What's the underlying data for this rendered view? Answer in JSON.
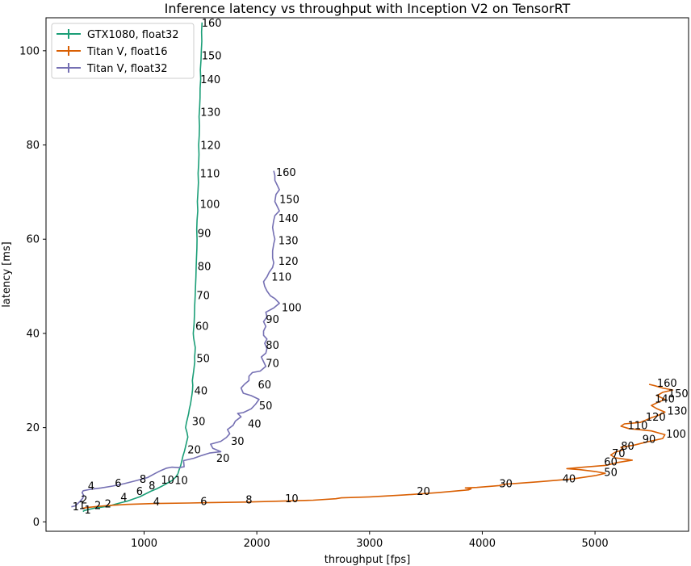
{
  "chart_data": {
    "type": "line",
    "title": "Inference latency vs throughput with Inception V2 on TensorRT",
    "xlabel": "throughput [fps]",
    "ylabel": "latency [ms]",
    "xlim": [
      130,
      5830
    ],
    "ylim": [
      -2,
      107
    ],
    "xticks": [
      1000,
      2000,
      3000,
      4000,
      5000
    ],
    "yticks": [
      0,
      20,
      40,
      60,
      80,
      100
    ],
    "legend_position": "top-left",
    "series": [
      {
        "name": "GTX1080, float32",
        "color": "#1b9e77",
        "points": [
          [
            457,
            2.2
          ],
          [
            470,
            2.4
          ],
          [
            500,
            2.6
          ],
          [
            560,
            2.9
          ],
          [
            620,
            3.1
          ],
          [
            680,
            3.3
          ],
          [
            740,
            3.7
          ],
          [
            800,
            4.1
          ],
          [
            850,
            4.4
          ],
          [
            900,
            4.8
          ],
          [
            960,
            5.3
          ],
          [
            1010,
            5.9
          ],
          [
            1060,
            6.5
          ],
          [
            1110,
            7.0
          ],
          [
            1160,
            7.6
          ],
          [
            1205,
            8.2
          ],
          [
            1250,
            8.8
          ],
          [
            1280,
            9.5
          ],
          [
            1300,
            10.2
          ],
          [
            1310,
            11
          ],
          [
            1325,
            12
          ],
          [
            1335,
            13
          ],
          [
            1345,
            14
          ],
          [
            1358,
            15
          ],
          [
            1368,
            16
          ],
          [
            1378,
            17
          ],
          [
            1388,
            18
          ],
          [
            1380,
            19
          ],
          [
            1368,
            20
          ],
          [
            1375,
            21
          ],
          [
            1385,
            22
          ],
          [
            1395,
            23
          ],
          [
            1402,
            24
          ],
          [
            1412,
            25
          ],
          [
            1418,
            26
          ],
          [
            1425,
            27
          ],
          [
            1430,
            28
          ],
          [
            1432,
            29
          ],
          [
            1428,
            30
          ],
          [
            1434,
            31
          ],
          [
            1440,
            32
          ],
          [
            1445,
            33
          ],
          [
            1450,
            34
          ],
          [
            1448,
            35
          ],
          [
            1452,
            36
          ],
          [
            1454,
            37
          ],
          [
            1447,
            38
          ],
          [
            1440,
            39
          ],
          [
            1436,
            40
          ],
          [
            1443,
            42
          ],
          [
            1447,
            44
          ],
          [
            1449,
            46
          ],
          [
            1453,
            48
          ],
          [
            1456,
            50
          ],
          [
            1460,
            52
          ],
          [
            1462,
            54
          ],
          [
            1465,
            56
          ],
          [
            1468,
            58
          ],
          [
            1470,
            60
          ],
          [
            1467,
            62
          ],
          [
            1470,
            64
          ],
          [
            1476,
            66
          ],
          [
            1473,
            68
          ],
          [
            1478,
            70
          ],
          [
            1482,
            72
          ],
          [
            1479,
            74
          ],
          [
            1484,
            76
          ],
          [
            1487,
            78
          ],
          [
            1484,
            80
          ],
          [
            1489,
            82
          ],
          [
            1491,
            84
          ],
          [
            1488,
            86
          ],
          [
            1493,
            88
          ],
          [
            1496,
            90
          ],
          [
            1497,
            92
          ],
          [
            1502,
            94
          ],
          [
            1499,
            96
          ],
          [
            1505,
            98
          ],
          [
            1508,
            100
          ],
          [
            1512,
            102
          ],
          [
            1510,
            104
          ],
          [
            1514,
            106
          ]
        ]
      },
      {
        "name": "Titan V, float16",
        "color": "#d95f02",
        "points": [
          [
            455,
            2.9
          ],
          [
            520,
            3.1
          ],
          [
            600,
            3.3
          ],
          [
            700,
            3.5
          ],
          [
            850,
            3.7
          ],
          [
            1100,
            3.9
          ],
          [
            1400,
            4.0
          ],
          [
            1600,
            4.1
          ],
          [
            1900,
            4.2
          ],
          [
            2200,
            4.4
          ],
          [
            2500,
            4.6
          ],
          [
            2700,
            4.9
          ],
          [
            2750,
            5.1
          ],
          [
            3000,
            5.3
          ],
          [
            3300,
            5.7
          ],
          [
            3600,
            6.2
          ],
          [
            3880,
            6.8
          ],
          [
            3900,
            7.0
          ],
          [
            3850,
            7.2
          ],
          [
            3950,
            7.3
          ],
          [
            4150,
            7.7
          ],
          [
            4200,
            8.0
          ],
          [
            4500,
            8.5
          ],
          [
            4800,
            9.1
          ],
          [
            5000,
            9.8
          ],
          [
            5090,
            10.3
          ],
          [
            5000,
            10.7
          ],
          [
            4860,
            11.1
          ],
          [
            4750,
            11.3
          ],
          [
            4900,
            11.6
          ],
          [
            5100,
            12.0
          ],
          [
            5200,
            12.6
          ],
          [
            5330,
            13.1
          ],
          [
            5180,
            13.6
          ],
          [
            5140,
            14.2
          ],
          [
            5180,
            14.8
          ],
          [
            5250,
            15.3
          ],
          [
            5230,
            15.8
          ],
          [
            5350,
            16.3
          ],
          [
            5450,
            16.9
          ],
          [
            5600,
            17.7
          ],
          [
            5620,
            18.5
          ],
          [
            5500,
            19.3
          ],
          [
            5300,
            19.8
          ],
          [
            5230,
            20.3
          ],
          [
            5260,
            20.8
          ],
          [
            5400,
            21.1
          ],
          [
            5450,
            21.6
          ],
          [
            5500,
            22.1
          ],
          [
            5560,
            22.6
          ],
          [
            5620,
            23.3
          ],
          [
            5550,
            24.0
          ],
          [
            5500,
            24.7
          ],
          [
            5560,
            25.4
          ],
          [
            5620,
            26.0
          ],
          [
            5550,
            26.8
          ],
          [
            5600,
            27.5
          ],
          [
            5690,
            28.0
          ],
          [
            5600,
            28.4
          ],
          [
            5530,
            28.9
          ],
          [
            5480,
            29.2
          ]
        ]
      },
      {
        "name": "Titan V, float32",
        "color": "#7570b3",
        "points": [
          [
            355,
            3.2
          ],
          [
            390,
            3.4
          ],
          [
            430,
            4.3
          ],
          [
            455,
            5.0
          ],
          [
            465,
            5.6
          ],
          [
            450,
            6.2
          ],
          [
            460,
            6.6
          ],
          [
            520,
            6.9
          ],
          [
            620,
            7.2
          ],
          [
            720,
            7.6
          ],
          [
            820,
            8.1
          ],
          [
            920,
            8.7
          ],
          [
            1030,
            9.4
          ],
          [
            1100,
            10.3
          ],
          [
            1150,
            10.9
          ],
          [
            1200,
            11.4
          ],
          [
            1245,
            11.6
          ],
          [
            1310,
            11.5
          ],
          [
            1355,
            11.7
          ],
          [
            1350,
            13.0
          ],
          [
            1440,
            13.5
          ],
          [
            1500,
            14.0
          ],
          [
            1580,
            14.6
          ],
          [
            1680,
            14.9
          ],
          [
            1610,
            15.6
          ],
          [
            1590,
            16.5
          ],
          [
            1680,
            17.1
          ],
          [
            1730,
            17.9
          ],
          [
            1760,
            18.7
          ],
          [
            1740,
            19.6
          ],
          [
            1790,
            20.5
          ],
          [
            1810,
            21.4
          ],
          [
            1860,
            22.3
          ],
          [
            1830,
            23.0
          ],
          [
            1880,
            23.2
          ],
          [
            1950,
            24.0
          ],
          [
            1990,
            25.0
          ],
          [
            2020,
            26.0
          ],
          [
            1950,
            26.8
          ],
          [
            1880,
            27.3
          ],
          [
            1860,
            28.4
          ],
          [
            1890,
            29.2
          ],
          [
            1930,
            30.0
          ],
          [
            1930,
            30.9
          ],
          [
            1960,
            31.7
          ],
          [
            2030,
            32.0
          ],
          [
            2080,
            33.0
          ],
          [
            2060,
            34.0
          ],
          [
            2040,
            35.0
          ],
          [
            2080,
            35.8
          ],
          [
            2090,
            36.8
          ],
          [
            2070,
            37.9
          ],
          [
            2090,
            38.8
          ],
          [
            2060,
            39.6
          ],
          [
            2060,
            40.5
          ],
          [
            2080,
            41.5
          ],
          [
            2060,
            42.5
          ],
          [
            2090,
            43.5
          ],
          [
            2080,
            44.5
          ],
          [
            2150,
            45.4
          ],
          [
            2200,
            46.4
          ],
          [
            2160,
            47.4
          ],
          [
            2120,
            48.0
          ],
          [
            2090,
            49.0
          ],
          [
            2070,
            50.0
          ],
          [
            2060,
            51.0
          ],
          [
            2090,
            52.0
          ],
          [
            2110,
            53.0
          ],
          [
            2140,
            54.0
          ],
          [
            2150,
            55.0
          ],
          [
            2140,
            56.0
          ],
          [
            2140,
            57.5
          ],
          [
            2150,
            59.0
          ],
          [
            2160,
            60.0
          ],
          [
            2150,
            61.0
          ],
          [
            2140,
            62.5
          ],
          [
            2150,
            64.0
          ],
          [
            2160,
            65.0
          ],
          [
            2200,
            66.0
          ],
          [
            2180,
            67.0
          ],
          [
            2160,
            68.0
          ],
          [
            2170,
            69.5
          ],
          [
            2200,
            70.5
          ],
          [
            2180,
            71.5
          ],
          [
            2160,
            72.5
          ],
          [
            2160,
            73.5
          ],
          [
            2150,
            74.5
          ]
        ]
      }
    ],
    "annotations": [
      {
        "text": "160",
        "x": 1510,
        "y": 106
      },
      {
        "text": "150",
        "x": 1510,
        "y": 99
      },
      {
        "text": "140",
        "x": 1500,
        "y": 94
      },
      {
        "text": "130",
        "x": 1500,
        "y": 87
      },
      {
        "text": "120",
        "x": 1500,
        "y": 80
      },
      {
        "text": "110",
        "x": 1495,
        "y": 74
      },
      {
        "text": "100",
        "x": 1495,
        "y": 67.5
      },
      {
        "text": "90",
        "x": 1475,
        "y": 61.3
      },
      {
        "text": "80",
        "x": 1475,
        "y": 54.3
      },
      {
        "text": "70",
        "x": 1465,
        "y": 48.1
      },
      {
        "text": "60",
        "x": 1455,
        "y": 41.6
      },
      {
        "text": "50",
        "x": 1465,
        "y": 34.8
      },
      {
        "text": "40",
        "x": 1445,
        "y": 27.9
      },
      {
        "text": "30",
        "x": 1425,
        "y": 21.4
      },
      {
        "text": "20",
        "x": 1385,
        "y": 15.4
      },
      {
        "text": "10",
        "x": 1150,
        "y": 9.0
      },
      {
        "text": "8",
        "x": 1040,
        "y": 7.8
      },
      {
        "text": "6",
        "x": 930,
        "y": 6.6
      },
      {
        "text": "4",
        "x": 790,
        "y": 5.3
      },
      {
        "text": "2",
        "x": 560,
        "y": 3.6
      },
      {
        "text": "1",
        "x": 470,
        "y": 2.6
      },
      {
        "text": "160",
        "x": 2170,
        "y": 74.3
      },
      {
        "text": "150",
        "x": 2200,
        "y": 68.5
      },
      {
        "text": "140",
        "x": 2190,
        "y": 64.5
      },
      {
        "text": "130",
        "x": 2190,
        "y": 59.8
      },
      {
        "text": "120",
        "x": 2190,
        "y": 55.4
      },
      {
        "text": "110",
        "x": 2130,
        "y": 52.1
      },
      {
        "text": "100",
        "x": 2220,
        "y": 45.6
      },
      {
        "text": "90",
        "x": 2080,
        "y": 43.1
      },
      {
        "text": "80",
        "x": 2080,
        "y": 37.6
      },
      {
        "text": "70",
        "x": 2080,
        "y": 33.7
      },
      {
        "text": "60",
        "x": 2010,
        "y": 29.2
      },
      {
        "text": "50",
        "x": 2020,
        "y": 24.7
      },
      {
        "text": "40",
        "x": 1920,
        "y": 20.9
      },
      {
        "text": "30",
        "x": 1770,
        "y": 17.2
      },
      {
        "text": "20",
        "x": 1640,
        "y": 13.6
      },
      {
        "text": "10",
        "x": 1270,
        "y": 8.9
      },
      {
        "text": "8",
        "x": 960,
        "y": 9.1
      },
      {
        "text": "6",
        "x": 740,
        "y": 8.3
      },
      {
        "text": "4",
        "x": 500,
        "y": 7.7
      },
      {
        "text": "2",
        "x": 440,
        "y": 4.8
      },
      {
        "text": "1",
        "x": 365,
        "y": 3.3
      },
      {
        "text": "160",
        "x": 5550,
        "y": 29.5
      },
      {
        "text": "150",
        "x": 5650,
        "y": 27.3
      },
      {
        "text": "140",
        "x": 5530,
        "y": 26.2
      },
      {
        "text": "130",
        "x": 5640,
        "y": 23.6
      },
      {
        "text": "120",
        "x": 5450,
        "y": 22.3
      },
      {
        "text": "110",
        "x": 5290,
        "y": 20.5
      },
      {
        "text": "100",
        "x": 5630,
        "y": 18.7
      },
      {
        "text": "90",
        "x": 5420,
        "y": 17.6
      },
      {
        "text": "80",
        "x": 5230,
        "y": 16.2
      },
      {
        "text": "70",
        "x": 5150,
        "y": 14.6
      },
      {
        "text": "60",
        "x": 5080,
        "y": 12.8
      },
      {
        "text": "50",
        "x": 5080,
        "y": 10.6
      },
      {
        "text": "40",
        "x": 4710,
        "y": 9.2
      },
      {
        "text": "30",
        "x": 4150,
        "y": 8.2
      },
      {
        "text": "20",
        "x": 3420,
        "y": 6.6
      },
      {
        "text": "10",
        "x": 2250,
        "y": 5.0
      },
      {
        "text": "8",
        "x": 1900,
        "y": 4.8
      },
      {
        "text": "6",
        "x": 1500,
        "y": 4.4
      },
      {
        "text": "4",
        "x": 1080,
        "y": 4.3
      },
      {
        "text": "2",
        "x": 650,
        "y": 3.9
      },
      {
        "text": "1",
        "x": 420,
        "y": 3.6
      }
    ]
  }
}
